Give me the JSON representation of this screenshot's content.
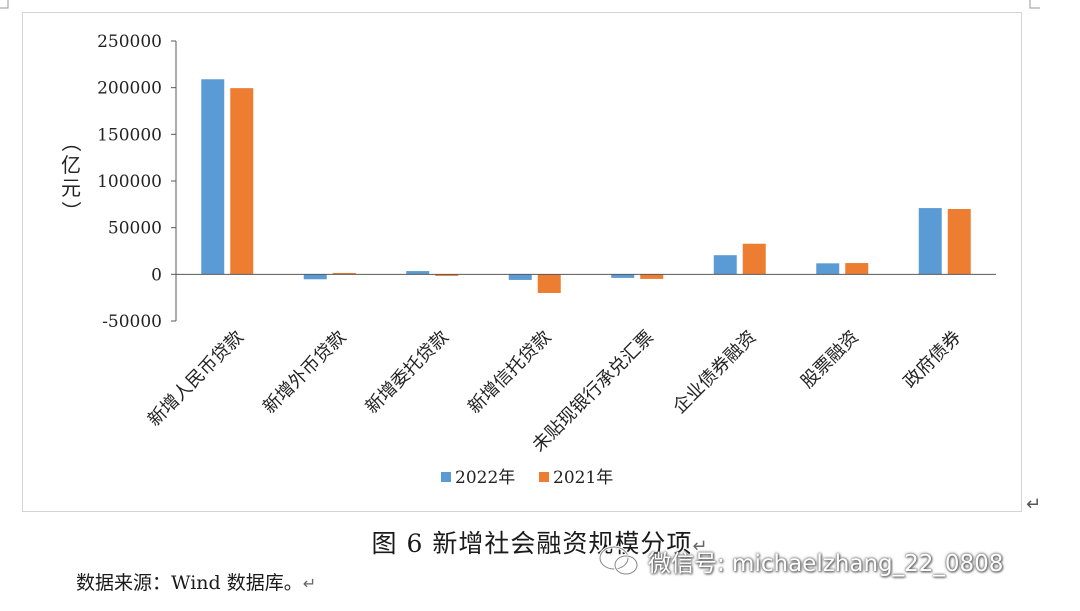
{
  "chart_data": {
    "type": "bar",
    "title": "",
    "ylabel": "（亿元）",
    "categories": [
      "新增人民币贷款",
      "新增外币贷款",
      "新增委托贷款",
      "新增信托贷款",
      "未贴现银行承兑汇票",
      "企业债券融资",
      "股票融资",
      "政府债券"
    ],
    "series": [
      {
        "name": "2022年",
        "color": "#5b9bd5",
        "values": [
          209000,
          -5300,
          3500,
          -6000,
          -3800,
          20500,
          11800,
          71000
        ]
      },
      {
        "name": "2021年",
        "color": "#ed7d31",
        "values": [
          199500,
          1500,
          -1700,
          -20000,
          -4900,
          32800,
          12100,
          70000
        ]
      }
    ],
    "ylim": [
      -50000,
      250000
    ],
    "yticks": [
      250000,
      200000,
      150000,
      100000,
      50000,
      0,
      -50000
    ],
    "grid": false,
    "legend": "bottom-center"
  },
  "caption": "图 6  新增社会融资规模分项",
  "source": "数据来源：Wind 数据库。",
  "watermark": "微信号: michaelzhang_22_0808",
  "para_mark": "↵"
}
